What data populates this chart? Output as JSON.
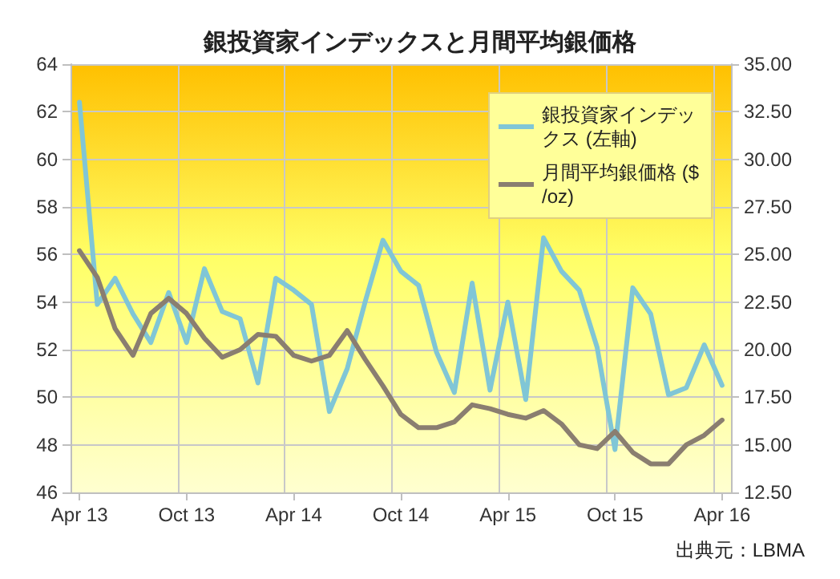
{
  "chart_data": {
    "type": "line",
    "title": "銀投資家インデックスと月間平均銀価格",
    "categories": [
      "Apr 13",
      null,
      null,
      null,
      null,
      null,
      "Oct 13",
      null,
      null,
      null,
      null,
      null,
      "Apr 14",
      null,
      null,
      null,
      null,
      null,
      "Oct 14",
      null,
      null,
      null,
      null,
      null,
      "Apr 15",
      null,
      null,
      null,
      null,
      null,
      "Oct 15",
      null,
      null,
      null,
      null,
      null,
      "Apr 16"
    ],
    "series": [
      {
        "name": "銀投資家インデックス (左軸)",
        "color": "#80c6d6",
        "values": [
          62.4,
          53.9,
          55.0,
          53.5,
          52.3,
          54.4,
          52.3,
          55.4,
          53.6,
          53.3,
          50.6,
          55.0,
          54.5,
          53.9,
          49.4,
          51.2,
          54.0,
          56.6,
          55.3,
          54.7,
          51.9,
          50.2,
          54.8,
          50.3,
          54.0,
          49.9,
          56.7,
          55.3,
          54.5,
          52.1,
          47.8,
          54.6,
          53.5,
          50.1,
          50.4,
          52.2,
          50.5
        ]
      },
      {
        "name": "月間平均銀価格 ($/oz)",
        "color": "#8a7e70",
        "axis": "y2",
        "values": [
          25.2,
          23.8,
          21.1,
          19.7,
          21.9,
          22.7,
          21.9,
          20.6,
          19.6,
          20.0,
          20.8,
          20.7,
          19.7,
          19.4,
          19.7,
          21.0,
          19.5,
          18.1,
          16.6,
          15.9,
          15.9,
          16.2,
          17.1,
          16.9,
          16.6,
          16.4,
          16.8,
          16.1,
          15.0,
          14.8,
          15.7,
          14.6,
          14.0,
          14.0,
          15.0,
          15.5,
          16.3
        ]
      }
    ],
    "ylim": [
      46,
      64
    ],
    "yticks": [
      46,
      48,
      50,
      52,
      54,
      56,
      58,
      60,
      62,
      64
    ],
    "y2lim": [
      12.5,
      35
    ],
    "y2ticks": [
      {
        "value": 12.5,
        "label": "12.50"
      },
      {
        "value": 15,
        "label": "15.00"
      },
      {
        "value": 17.5,
        "label": "17.50"
      },
      {
        "value": 20,
        "label": "20.00"
      },
      {
        "value": 22.5,
        "label": "22.50"
      },
      {
        "value": 25,
        "label": "25.00"
      },
      {
        "value": 27.5,
        "label": "27.50"
      },
      {
        "value": 30,
        "label": "30.00"
      },
      {
        "value": 32.5,
        "label": "32.50"
      },
      {
        "value": 35,
        "label": "35.00"
      }
    ],
    "grid": true,
    "legend": "top right",
    "marker": "none",
    "line_style": "solid",
    "annotations": [
      "出典元：LBMA"
    ]
  }
}
